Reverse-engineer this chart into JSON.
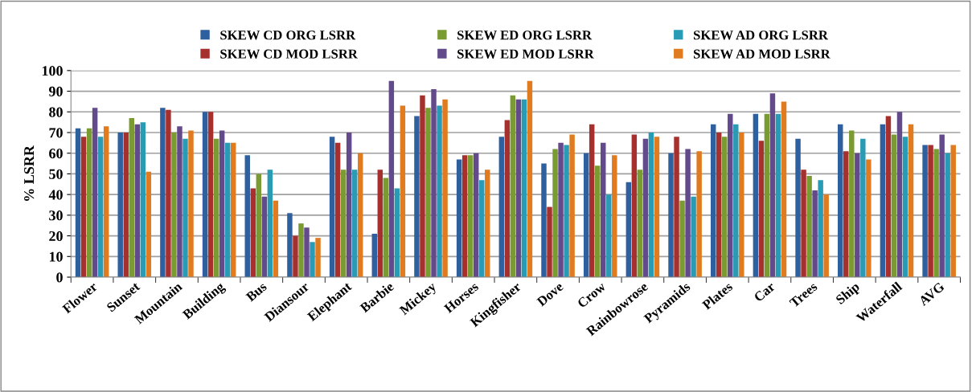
{
  "chart_data": {
    "type": "bar",
    "ylabel": "% LSRR",
    "categories": [
      "Flower",
      "Sunset",
      "Mountain",
      "Building",
      "Bus",
      "Diansour",
      "Elephant",
      "Barbie",
      "Mickey",
      "Horses",
      "Kingfisher",
      "Dove",
      "Crow",
      "Rainbowrose",
      "Pyramids",
      "Plates",
      "Car",
      "Trees",
      "Ship",
      "Waterfall",
      "AVG"
    ],
    "series": [
      {
        "name": "SKEW CD ORG LSRR",
        "color": "#2e5f9e",
        "values": [
          72,
          70,
          82,
          80,
          59,
          31,
          68,
          21,
          78,
          57,
          68,
          55,
          60,
          46,
          60,
          74,
          79,
          67,
          74,
          74,
          64
        ]
      },
      {
        "name": "SKEW CD MOD LSRR",
        "color": "#a6302e",
        "values": [
          68,
          70,
          81,
          80,
          43,
          20,
          65,
          52,
          88,
          59,
          76,
          34,
          74,
          69,
          68,
          70,
          66,
          52,
          61,
          78,
          64
        ]
      },
      {
        "name": "SKEW ED ORG LSRR",
        "color": "#7a9a32",
        "values": [
          72,
          77,
          70,
          67,
          50,
          26,
          52,
          48,
          82,
          59,
          88,
          62,
          54,
          52,
          37,
          68,
          79,
          49,
          71,
          69,
          62
        ]
      },
      {
        "name": "SKEW ED MOD LSRR",
        "color": "#634a8a",
        "values": [
          82,
          74,
          73,
          71,
          39,
          24,
          70,
          95,
          91,
          60,
          86,
          65,
          65,
          67,
          62,
          79,
          89,
          42,
          60,
          80,
          69
        ]
      },
      {
        "name": "SKEW AD ORG LSRR",
        "color": "#2a9bb5",
        "values": [
          68,
          75,
          67,
          65,
          52,
          17,
          52,
          43,
          83,
          47,
          86,
          64,
          40,
          70,
          39,
          74,
          79,
          47,
          67,
          68,
          60
        ]
      },
      {
        "name": "SKEW AD MOD LSRR",
        "color": "#e07b20",
        "values": [
          73,
          51,
          71,
          65,
          37,
          19,
          60,
          83,
          86,
          52,
          95,
          69,
          59,
          68,
          61,
          70,
          85,
          40,
          57,
          74,
          64
        ]
      }
    ],
    "ylim": [
      0,
      100
    ],
    "yticks": [
      0,
      10,
      20,
      30,
      40,
      50,
      60,
      70,
      80,
      90,
      100
    ],
    "grid": "y",
    "legend": "top"
  }
}
